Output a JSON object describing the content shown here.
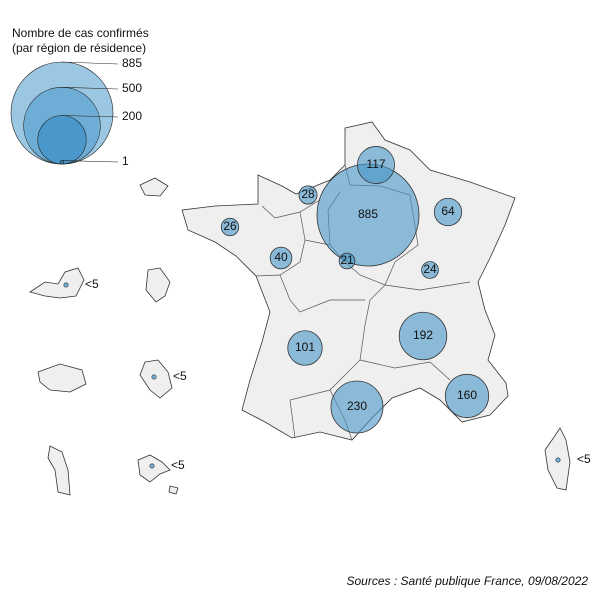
{
  "legend": {
    "title": "Nombre de cas confirmés",
    "subtitle": "(par région de résidence)",
    "values": [
      885,
      500,
      200,
      1
    ]
  },
  "bubbles": [
    {
      "value": 885
    },
    {
      "value": 117
    },
    {
      "value": 28
    },
    {
      "value": 26
    },
    {
      "value": 64
    },
    {
      "value": 40
    },
    {
      "value": 21
    },
    {
      "value": 24
    },
    {
      "value": 101
    },
    {
      "value": 192
    },
    {
      "value": 230
    },
    {
      "value": 160
    }
  ],
  "overseas": [
    {
      "label": "<5"
    },
    {
      "label": "<5"
    },
    {
      "label": "<5"
    },
    {
      "label": "<5"
    }
  ],
  "source": "Sources : Santé publique France, 09/08/2022"
}
